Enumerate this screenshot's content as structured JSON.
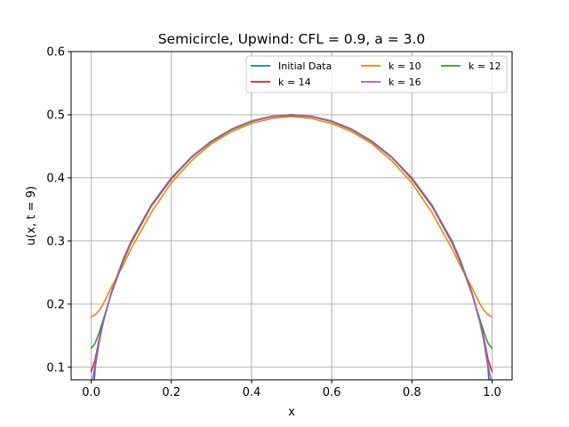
{
  "chart_data": {
    "type": "line",
    "title": "Semicircle, Upwind: CFL = 0.9, a = 3.0",
    "xlabel": "x",
    "ylabel": "u(x, t = 9)",
    "xlim": [
      -0.05,
      1.05
    ],
    "ylim": [
      0.08,
      0.6
    ],
    "xticks": [
      "0.0",
      "0.2",
      "0.4",
      "0.6",
      "0.8",
      "1.0"
    ],
    "yticks": [
      "0.1",
      "0.2",
      "0.3",
      "0.4",
      "0.5",
      "0.6"
    ],
    "grid": true,
    "legend_position": "top-right",
    "legend_columns": 3,
    "x": [
      0.0,
      0.01,
      0.02,
      0.03,
      0.05,
      0.08,
      0.1,
      0.15,
      0.2,
      0.25,
      0.3,
      0.35,
      0.4,
      0.45,
      0.5,
      0.55,
      0.6,
      0.65,
      0.7,
      0.75,
      0.8,
      0.85,
      0.9,
      0.92,
      0.95,
      0.97,
      0.98,
      0.99,
      1.0
    ],
    "series": [
      {
        "name": "Initial Data",
        "color": "#1f77b4",
        "values": [
          0.0,
          0.0995,
          0.14,
          0.1706,
          0.2179,
          0.2713,
          0.3,
          0.357,
          0.4,
          0.433,
          0.4583,
          0.477,
          0.4899,
          0.4975,
          0.5,
          0.4975,
          0.4899,
          0.477,
          0.4583,
          0.433,
          0.4,
          0.357,
          0.3,
          0.2713,
          0.2179,
          0.1706,
          0.14,
          0.0995,
          0.0
        ]
      },
      {
        "name": "k = 10",
        "color": "#ff7f0e",
        "values": [
          0.18,
          0.183,
          0.19,
          0.2,
          0.226,
          0.262,
          0.288,
          0.345,
          0.392,
          0.427,
          0.454,
          0.473,
          0.486,
          0.494,
          0.497,
          0.494,
          0.486,
          0.473,
          0.454,
          0.427,
          0.392,
          0.345,
          0.288,
          0.262,
          0.226,
          0.2,
          0.19,
          0.183,
          0.18
        ]
      },
      {
        "name": "k = 12",
        "color": "#2ca02c",
        "values": [
          0.13,
          0.138,
          0.155,
          0.175,
          0.216,
          0.268,
          0.297,
          0.355,
          0.398,
          0.432,
          0.457,
          0.476,
          0.489,
          0.497,
          0.499,
          0.497,
          0.489,
          0.476,
          0.457,
          0.432,
          0.398,
          0.355,
          0.297,
          0.268,
          0.216,
          0.175,
          0.155,
          0.138,
          0.13
        ]
      },
      {
        "name": "k = 14",
        "color": "#d62728",
        "values": [
          0.093,
          0.112,
          0.145,
          0.172,
          0.217,
          0.27,
          0.299,
          0.356,
          0.399,
          0.433,
          0.458,
          0.477,
          0.49,
          0.497,
          0.5,
          0.497,
          0.49,
          0.477,
          0.458,
          0.433,
          0.399,
          0.356,
          0.299,
          0.27,
          0.217,
          0.172,
          0.145,
          0.112,
          0.093
        ]
      },
      {
        "name": "k = 16",
        "color": "#9467bd",
        "values": [
          0.07,
          0.104,
          0.141,
          0.171,
          0.218,
          0.271,
          0.3,
          0.357,
          0.4,
          0.433,
          0.458,
          0.477,
          0.49,
          0.4975,
          0.5,
          0.4975,
          0.49,
          0.477,
          0.458,
          0.433,
          0.4,
          0.357,
          0.3,
          0.271,
          0.218,
          0.171,
          0.141,
          0.104,
          0.07
        ]
      }
    ]
  }
}
